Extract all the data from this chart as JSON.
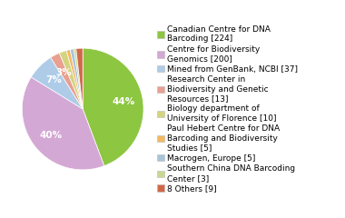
{
  "labels": [
    "Canadian Centre for DNA\nBarcoding [224]",
    "Centre for Biodiversity\nGenomics [200]",
    "Mined from GenBank, NCBI [37]",
    "Research Center in\nBiodiversity and Genetic\nResources [13]",
    "Biology department of\nUniversity of Florence [10]",
    "Paul Hebert Centre for DNA\nBarcoding and Biodiversity\nStudies [5]",
    "Macrogen, Europe [5]",
    "Southern China DNA Barcoding\nCenter [3]",
    "8 Others [9]"
  ],
  "values": [
    224,
    200,
    37,
    13,
    10,
    5,
    5,
    3,
    9
  ],
  "colors": [
    "#8DC641",
    "#D4A8D4",
    "#AECCE8",
    "#E8A090",
    "#D4D480",
    "#F5B862",
    "#A8C4D8",
    "#C8D890",
    "#D06848"
  ],
  "background_color": "#ffffff",
  "fontsize_pct": 7.5,
  "fontsize_legend": 6.5,
  "pct_threshold": 2.0
}
